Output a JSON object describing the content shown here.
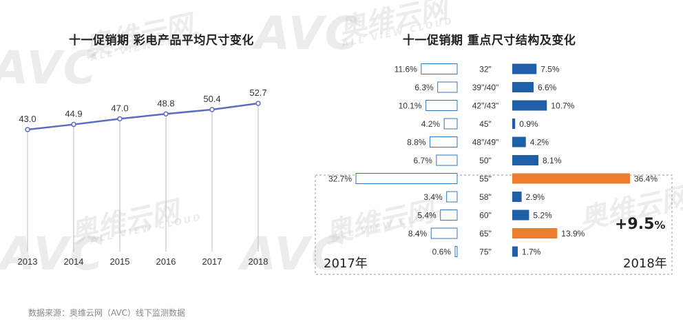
{
  "left_chart": {
    "title": "十一促销期 彩电产品平均尺寸变化"
  },
  "right_chart": {
    "title": "十一促销期 重点尺寸结构及变化",
    "year_left": "2017年",
    "year_right": "2018年",
    "growth_value": "+9.5",
    "growth_unit": "%"
  },
  "source": "数据来源：奥维云网（AVC）线下监测数据",
  "watermark": {
    "brand": "AVC",
    "cn": "奥维云网",
    "sub": "ALL VIEW CLOUD"
  },
  "colors": {
    "line": "#5b6cc4",
    "bar_2018": "#1f5fa8",
    "bar_2017_border": "#2e75c0",
    "highlight": "#ed7d31",
    "dashed_box": "#999999"
  },
  "chart_data": [
    {
      "type": "line",
      "title": "十一促销期 彩电产品平均尺寸变化",
      "x": [
        "2013",
        "2014",
        "2015",
        "2016",
        "2017",
        "2018"
      ],
      "y": [
        43.0,
        44.9,
        47.0,
        48.8,
        50.4,
        52.7
      ],
      "labels": [
        "43.0",
        "44.9",
        "47.0",
        "48.8",
        "50.4",
        "52.7"
      ],
      "grid": "vertical lines",
      "xlabel": "",
      "ylabel": ""
    },
    {
      "type": "bar",
      "title": "十一促销期 重点尺寸结构及变化",
      "orientation": "horizontal-butterfly",
      "categories": [
        "32\"",
        "39\"/40\"",
        "42\"/43\"",
        "45\"",
        "48\"/49\"",
        "50\"",
        "55\"",
        "58\"",
        "60\"",
        "65\"",
        "75\""
      ],
      "series": [
        {
          "name": "2017年",
          "values": [
            11.6,
            6.3,
            10.1,
            4.2,
            8.8,
            6.7,
            32.7,
            3.4,
            5.4,
            8.4,
            0.6
          ],
          "labels": [
            "11.6%",
            "6.3%",
            "10.1%",
            "4.2%",
            "8.8%",
            "6.7%",
            "32.7%",
            "3.4%",
            "5.4%",
            "8.4%",
            "0.6%"
          ]
        },
        {
          "name": "2018年",
          "values": [
            7.5,
            6.6,
            10.7,
            0.9,
            4.2,
            8.1,
            36.4,
            2.9,
            5.2,
            13.9,
            1.7
          ],
          "labels": [
            "7.5%",
            "6.6%",
            "10.7%",
            "0.9%",
            "4.2%",
            "8.1%",
            "36.4%",
            "2.9%",
            "5.2%",
            "13.9%",
            "1.7%"
          ]
        }
      ],
      "highlighted_categories": [
        "55\"",
        "65\""
      ]
    }
  ]
}
